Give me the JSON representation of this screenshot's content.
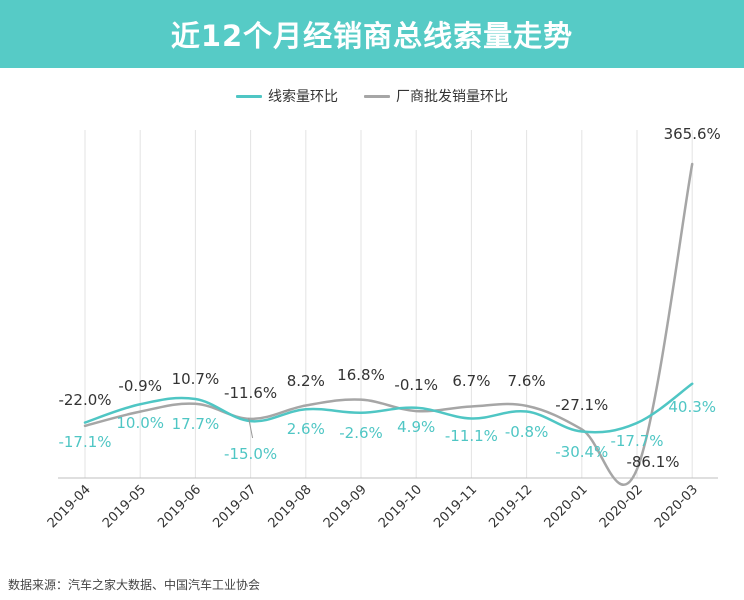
{
  "header": {
    "title": "近12个月经销商总线索量走势"
  },
  "colors": {
    "banner": "#56cbc6",
    "series1": "#4fc6c4",
    "series2": "#a6a6a6"
  },
  "source": "数据来源：汽车之家大数据、中国汽车工业协会",
  "chart_data": {
    "type": "line",
    "categories": [
      "2019-04",
      "2019-05",
      "2019-06",
      "2019-07",
      "2019-08",
      "2019-09",
      "2019-10",
      "2019-11",
      "2019-12",
      "2020-01",
      "2020-02",
      "2020-03"
    ],
    "series": [
      {
        "name": "线索量环比",
        "values": [
          -17.1,
          10.0,
          17.7,
          -15.0,
          2.6,
          -2.6,
          4.9,
          -11.1,
          -0.8,
          -30.4,
          -17.7,
          40.3
        ],
        "labels": [
          "-17.1%",
          "10.0%",
          "17.7%",
          "-15.0%",
          "2.6%",
          "-2.6%",
          "4.9%",
          "-11.1%",
          "-0.8%",
          "-30.4%",
          "-17.7%",
          "40.3%"
        ],
        "color": "#4fc6c4"
      },
      {
        "name": "厂商批发销量环比",
        "values": [
          -22.0,
          -0.9,
          10.7,
          -11.6,
          8.2,
          16.8,
          -0.1,
          6.7,
          7.6,
          -27.1,
          -86.1,
          365.6
        ],
        "labels": [
          "-22.0%",
          "-0.9%",
          "10.7%",
          "-11.6%",
          "8.2%",
          "16.8%",
          "-0.1%",
          "6.7%",
          "7.6%",
          "-27.1%",
          "-86.1%",
          "365.6%"
        ],
        "color": "#a6a6a6"
      }
    ],
    "legend_position": "top-center",
    "grid": "vertical"
  }
}
